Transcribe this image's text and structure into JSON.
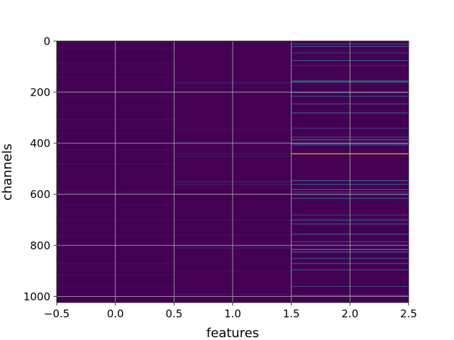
{
  "chart_data": {
    "type": "heatmap",
    "xlabel": "features",
    "ylabel": "channels",
    "xlim": [
      -0.5,
      2.5
    ],
    "ylim": [
      1024,
      0
    ],
    "y_inverted": true,
    "xticks": [
      -0.5,
      0.0,
      0.5,
      1.0,
      1.5,
      2.0,
      2.5
    ],
    "xtick_labels": [
      "−0.5",
      "0.0",
      "0.5",
      "1.0",
      "1.5",
      "2.0",
      "2.5"
    ],
    "yticks": [
      0,
      200,
      400,
      600,
      800,
      1000
    ],
    "ytick_labels": [
      "0",
      "200",
      "400",
      "600",
      "800",
      "1000"
    ],
    "grid": true,
    "colormap": "viridis",
    "background_color": "#440154",
    "columns": [
      {
        "feature": 0,
        "rows": [
          [
            30,
            0.05
          ],
          [
            85,
            0.06
          ],
          [
            140,
            0.05
          ],
          [
            220,
            0.05
          ],
          [
            305,
            0.06
          ],
          [
            360,
            0.05
          ],
          [
            425,
            0.05
          ],
          [
            480,
            0.06
          ],
          [
            590,
            0.07
          ],
          [
            640,
            0.05
          ],
          [
            700,
            0.05
          ],
          [
            760,
            0.05
          ],
          [
            870,
            0.06
          ],
          [
            915,
            0.06
          ],
          [
            960,
            0.05
          ],
          [
            1000,
            0.07
          ]
        ]
      },
      {
        "feature": 1,
        "rows": [
          [
            160,
            0.1
          ],
          [
            165,
            0.08
          ],
          [
            345,
            0.07
          ],
          [
            395,
            0.08
          ],
          [
            440,
            0.1
          ],
          [
            450,
            0.08
          ],
          [
            550,
            0.15
          ],
          [
            560,
            0.1
          ],
          [
            700,
            0.07
          ],
          [
            760,
            0.07
          ],
          [
            805,
            0.1
          ],
          [
            810,
            0.08
          ],
          [
            900,
            0.07
          ],
          [
            990,
            0.08
          ]
        ]
      },
      {
        "feature": 2,
        "rows": [
          [
            10,
            0.25
          ],
          [
            20,
            0.3
          ],
          [
            45,
            0.2
          ],
          [
            75,
            0.3
          ],
          [
            95,
            0.15
          ],
          [
            155,
            0.55
          ],
          [
            160,
            0.45
          ],
          [
            200,
            0.3
          ],
          [
            215,
            0.3
          ],
          [
            245,
            0.25
          ],
          [
            280,
            0.35
          ],
          [
            340,
            0.2
          ],
          [
            375,
            0.3
          ],
          [
            385,
            0.5
          ],
          [
            400,
            0.45
          ],
          [
            405,
            0.3
          ],
          [
            440,
            1.0
          ],
          [
            545,
            0.45
          ],
          [
            560,
            0.3
          ],
          [
            580,
            0.3
          ],
          [
            590,
            0.2
          ],
          [
            615,
            0.35
          ],
          [
            680,
            0.2
          ],
          [
            700,
            0.4
          ],
          [
            715,
            0.3
          ],
          [
            755,
            0.35
          ],
          [
            785,
            0.25
          ],
          [
            815,
            0.6
          ],
          [
            825,
            0.4
          ],
          [
            850,
            0.3
          ],
          [
            870,
            0.35
          ],
          [
            895,
            0.35
          ],
          [
            960,
            0.2
          ],
          [
            995,
            0.35
          ]
        ]
      }
    ]
  }
}
